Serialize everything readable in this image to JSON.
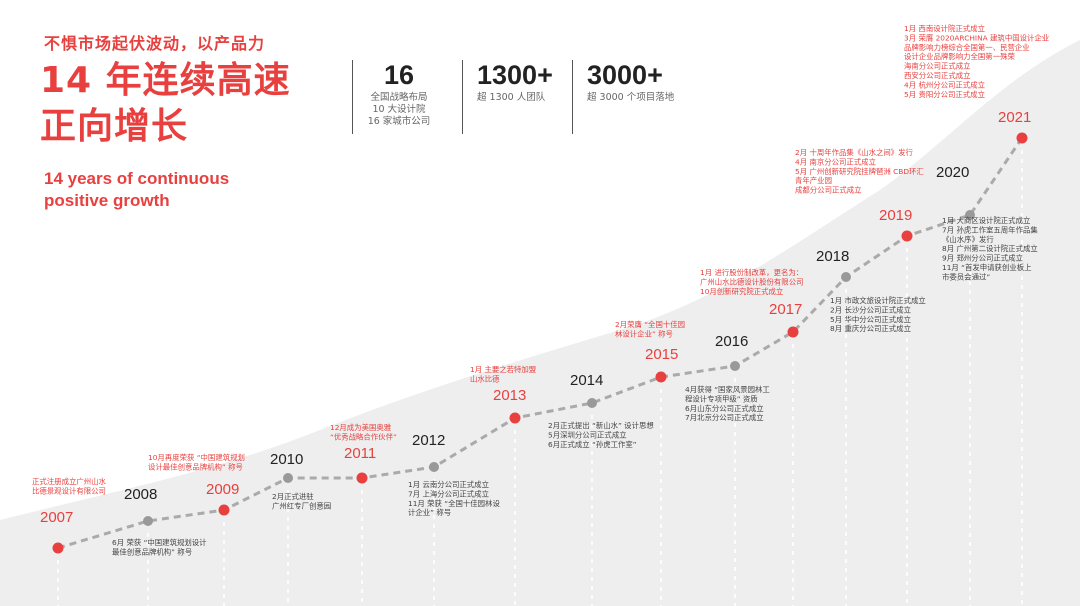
{
  "header": {
    "tagline": "不惧市场起伏波动，以产品力",
    "title_line1": "14 年连续高速",
    "title_line2": "正向增长",
    "subtitle_en_line1": "14 years of continuous",
    "subtitle_en_line2": "positive growth"
  },
  "stats": [
    {
      "number": "16",
      "lines": [
        "全国战略布局",
        "10 大设计院",
        "16 家城市公司"
      ]
    },
    {
      "number": "1300+",
      "lines": [
        "超 1300 人团队"
      ]
    },
    {
      "number": "3000+",
      "lines": [
        "超 3000 个项目落地"
      ]
    }
  ],
  "colors": {
    "accent": "#e8403f",
    "line": "#aaaaaa",
    "node": "#999999",
    "band": "#eeeeee"
  },
  "timeline": [
    {
      "year": "2007",
      "highlight": true,
      "notes": [
        "正式注册成立广州山水",
        "比德景观设计有限公司"
      ]
    },
    {
      "year": "2008",
      "highlight": false,
      "notes": [
        "6月 荣获 “中国建筑规划设计",
        "最佳创意品牌机构” 称号"
      ]
    },
    {
      "year": "2009",
      "highlight": true,
      "notes": [
        "10月再度荣获 “中国建筑规划",
        "设计最佳创意品牌机构” 称号"
      ]
    },
    {
      "year": "2010",
      "highlight": false,
      "notes": [
        "2月正式进驻",
        "广州红专厂创意园"
      ]
    },
    {
      "year": "2011",
      "highlight": true,
      "notes": [
        "12月成为美国奥雅",
        "“优秀战略合作伙伴”"
      ]
    },
    {
      "year": "2012",
      "highlight": false,
      "notes": [
        "1月 云南分公司正式成立",
        "7月 上海分公司正式成立",
        "11月 荣获 “全国十佳园林设",
        "计企业” 称号"
      ]
    },
    {
      "year": "2013",
      "highlight": true,
      "notes": [
        "1月 主要之若特加盟",
        "山水比德"
      ]
    },
    {
      "year": "2014",
      "highlight": false,
      "notes": [
        "2月正式提出 “新山水” 设计思想",
        "5月深圳分公司正式成立",
        "6月正式成立 “孙虎工作室”"
      ]
    },
    {
      "year": "2015",
      "highlight": true,
      "notes": [
        "2月荣膺 “全国十佳园",
        "林设计企业” 称号"
      ]
    },
    {
      "year": "2016",
      "highlight": false,
      "notes": [
        "4月获得 “国家风景园林工",
        "程设计专项甲级” 资质",
        "6月山东分公司正式成立",
        "7月北京分公司正式成立"
      ]
    },
    {
      "year": "2017",
      "highlight": true,
      "notes": [
        "1月 进行股份制改革，更名为：",
        "广州山水比德设计股份有限公司",
        "10月创新研究院正式成立"
      ]
    },
    {
      "year": "2018",
      "highlight": false,
      "notes": [
        "1月 市政文旅设计院正式成立",
        "2月 长沙分公司正式成立",
        "5月 华中分公司正式成立",
        "8月 重庆分公司正式成立"
      ]
    },
    {
      "year": "2019",
      "highlight": true,
      "notes": [
        "2月 十周年作品集《山水之间》发行",
        "4月 南京分公司正式成立",
        "5月 广州创新研究院挂牌琶洲 CBD环汇",
        "青年产业园",
        "成都分公司正式成立"
      ]
    },
    {
      "year": "2020",
      "highlight": false,
      "notes": [
        "1月 大商区设计院正式成立",
        "7月 孙虎工作室五周年作品集",
        "《山水序》发行",
        "8月 广州第二设计院正式成立",
        "9月 郑州分公司正式成立",
        "11月 “首发申请获创业板上",
        "市委员会通过”"
      ]
    },
    {
      "year": "2021",
      "highlight": true,
      "notes": [
        "1月 西南设计院正式成立",
        "3月 荣膺 2020ARCHINA 建筑中国设计企业",
        "品牌影响力榜综合全国第一、民营企业",
        "设计企业品牌影响力全国第一殊荣",
        "海南分公司正式成立",
        "西安分公司正式成立",
        "4月 杭州分公司正式成立",
        "5月 贵阳分公司正式成立"
      ]
    }
  ]
}
